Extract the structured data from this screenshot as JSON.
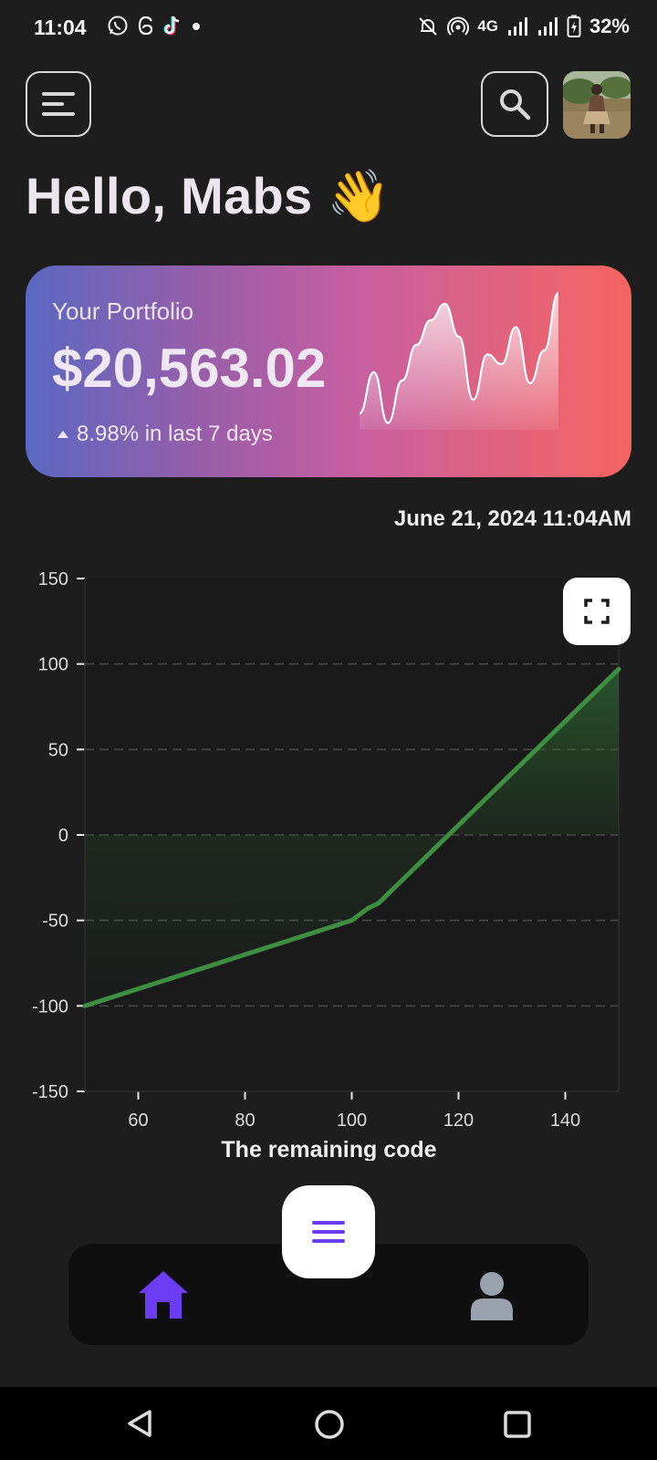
{
  "status_bar": {
    "time": "11:04",
    "network": "4G",
    "battery": "32%"
  },
  "header": {
    "greeting": "Hello, Mabs",
    "greeting_emoji": "👋"
  },
  "portfolio": {
    "label": "Your Portfolio",
    "value": "$20,563.02",
    "change": "8.98% in last 7 days",
    "sparkline": [
      0.12,
      0.42,
      0.05,
      0.36,
      0.62,
      0.8,
      0.92,
      0.68,
      0.22,
      0.55,
      0.48,
      0.75,
      0.34,
      0.58,
      1.0
    ]
  },
  "timestamp": "June 21, 2024 11:04AM",
  "chart_data": {
    "type": "line",
    "title": "",
    "xlabel": "The remaining code",
    "ylabel": "",
    "xlim": [
      50,
      150
    ],
    "ylim": [
      -150,
      150
    ],
    "x_ticks": [
      60,
      80,
      100,
      120,
      140
    ],
    "y_ticks": [
      150,
      100,
      50,
      0,
      -50,
      -100,
      -150
    ],
    "grid": "horizontal dashed",
    "series": [
      {
        "color": "#3e8e41",
        "x": [
          50,
          100,
          103,
          105,
          150
        ],
        "y": [
          -100,
          -50,
          -43,
          -40,
          97
        ]
      }
    ]
  },
  "nav": {
    "items": [
      "home-icon",
      "menu-icon",
      "profile-icon"
    ],
    "active": "home-icon",
    "active_color": "#6a3df3",
    "inactive_color": "#9aa3ad"
  }
}
